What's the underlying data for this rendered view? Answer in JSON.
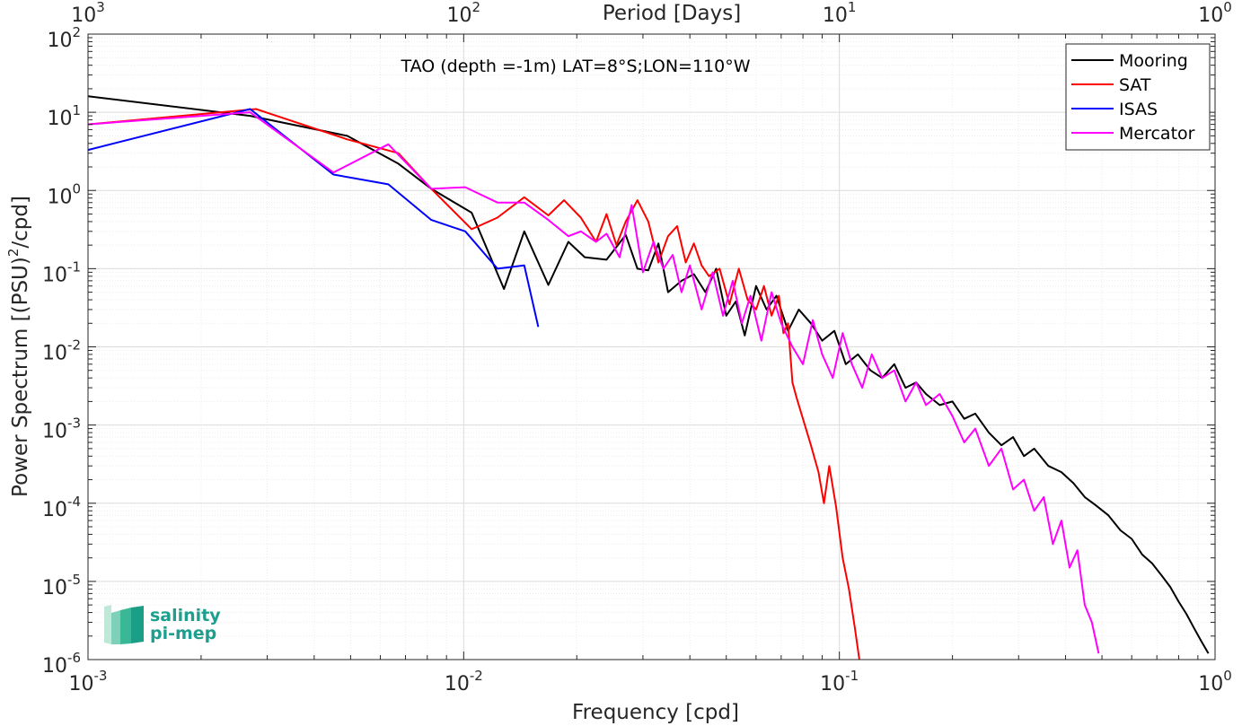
{
  "chart_data": {
    "type": "line",
    "title": "TAO (depth =-1m) LAT=8°S;LON=110°W",
    "xlabel": "Frequency [cpd]",
    "ylabel": "Power Spectrum [(PSU)²/cpd]",
    "ylabel_parts": {
      "pre": "Power Spectrum [(PSU)",
      "sup": "2",
      "post": "/cpd]"
    },
    "top_xlabel": "Period [Days]",
    "x_scale": "log",
    "y_scale": "log",
    "xlim": [
      0.001,
      1
    ],
    "ylim": [
      1e-06,
      100
    ],
    "grid": true,
    "minor_grid": true,
    "legend_position": "top-right",
    "x_ticks": [
      {
        "value": 0.001,
        "base": "10",
        "exp": "-3"
      },
      {
        "value": 0.01,
        "base": "10",
        "exp": "-2"
      },
      {
        "value": 0.1,
        "base": "10",
        "exp": "-1"
      },
      {
        "value": 1,
        "base": "10",
        "exp": "0"
      }
    ],
    "top_ticks": [
      {
        "value": 0.001,
        "base": "10",
        "exp": "3"
      },
      {
        "value": 0.01,
        "base": "10",
        "exp": "2"
      },
      {
        "value": 0.1,
        "base": "10",
        "exp": "1"
      },
      {
        "value": 1,
        "base": "10",
        "exp": "0"
      }
    ],
    "y_ticks": [
      {
        "value": 100,
        "base": "10",
        "exp": "2"
      },
      {
        "value": 10,
        "base": "10",
        "exp": "1"
      },
      {
        "value": 1,
        "base": "10",
        "exp": "0"
      },
      {
        "value": 0.1,
        "base": "10",
        "exp": "-1"
      },
      {
        "value": 0.01,
        "base": "10",
        "exp": "-2"
      },
      {
        "value": 0.001,
        "base": "10",
        "exp": "-3"
      },
      {
        "value": 0.0001,
        "base": "10",
        "exp": "-4"
      },
      {
        "value": 1e-05,
        "base": "10",
        "exp": "-5"
      },
      {
        "value": 1e-06,
        "base": "10",
        "exp": "-6"
      }
    ],
    "series": [
      {
        "name": "Mooring",
        "color": "#000000",
        "x": [
          0.001,
          0.0027,
          0.0049,
          0.0067,
          0.0082,
          0.0105,
          0.0128,
          0.0145,
          0.0168,
          0.019,
          0.021,
          0.024,
          0.027,
          0.029,
          0.031,
          0.033,
          0.035,
          0.038,
          0.041,
          0.044,
          0.047,
          0.05,
          0.053,
          0.056,
          0.06,
          0.064,
          0.068,
          0.073,
          0.078,
          0.084,
          0.09,
          0.097,
          0.104,
          0.112,
          0.121,
          0.13,
          0.14,
          0.15,
          0.16,
          0.17,
          0.185,
          0.2,
          0.215,
          0.23,
          0.25,
          0.27,
          0.29,
          0.31,
          0.33,
          0.36,
          0.39,
          0.42,
          0.45,
          0.48,
          0.52,
          0.56,
          0.6,
          0.64,
          0.68,
          0.72,
          0.76,
          0.8,
          0.84,
          0.88,
          0.92,
          0.96
        ],
        "y": [
          16,
          9,
          5,
          2.2,
          1.05,
          0.52,
          0.055,
          0.3,
          0.062,
          0.22,
          0.14,
          0.13,
          0.27,
          0.1,
          0.095,
          0.21,
          0.05,
          0.07,
          0.085,
          0.05,
          0.1,
          0.025,
          0.038,
          0.014,
          0.06,
          0.03,
          0.045,
          0.016,
          0.03,
          0.02,
          0.012,
          0.016,
          0.006,
          0.008,
          0.005,
          0.004,
          0.006,
          0.003,
          0.0035,
          0.0025,
          0.0018,
          0.002,
          0.0012,
          0.0014,
          0.0008,
          0.00055,
          0.0007,
          0.0004,
          0.0005,
          0.0003,
          0.00025,
          0.00018,
          0.00012,
          9.5e-05,
          7e-05,
          4.5e-05,
          3.5e-05,
          2.2e-05,
          1.7e-05,
          1.2e-05,
          8.5e-06,
          5.5e-06,
          3.8e-06,
          2.5e-06,
          1.7e-06,
          1.2e-06
        ]
      },
      {
        "name": "SAT",
        "color": "#ff0000",
        "x": [
          0.001,
          0.0028,
          0.0049,
          0.0067,
          0.0082,
          0.0105,
          0.0123,
          0.0145,
          0.0168,
          0.0185,
          0.0205,
          0.0225,
          0.024,
          0.0255,
          0.027,
          0.029,
          0.031,
          0.033,
          0.035,
          0.037,
          0.039,
          0.041,
          0.043,
          0.045,
          0.048,
          0.051,
          0.054,
          0.057,
          0.06,
          0.063,
          0.066,
          0.069,
          0.071,
          0.073,
          0.075,
          0.077,
          0.08,
          0.084,
          0.088,
          0.091,
          0.094,
          0.098,
          0.102,
          0.106,
          0.11,
          0.113
        ],
        "y": [
          7,
          11,
          4.5,
          3,
          1.05,
          0.32,
          0.45,
          0.82,
          0.48,
          0.75,
          0.45,
          0.22,
          0.5,
          0.2,
          0.4,
          0.75,
          0.4,
          0.12,
          0.26,
          0.35,
          0.12,
          0.21,
          0.11,
          0.08,
          0.1,
          0.035,
          0.1,
          0.04,
          0.03,
          0.06,
          0.025,
          0.045,
          0.015,
          0.02,
          0.0035,
          0.0022,
          0.0012,
          0.00055,
          0.00025,
          0.0001,
          0.0003,
          9e-05,
          2e-05,
          8e-06,
          2.5e-06,
          1e-06
        ]
      },
      {
        "name": "ISAS",
        "color": "#0000ff",
        "x": [
          0.001,
          0.0027,
          0.0045,
          0.0063,
          0.0082,
          0.0101,
          0.0123,
          0.0145,
          0.0158
        ],
        "y": [
          3.3,
          11,
          1.6,
          1.2,
          0.42,
          0.3,
          0.1,
          0.11,
          0.018
        ]
      },
      {
        "name": "Mercator",
        "color": "#ff00ff",
        "x": [
          0.001,
          0.0027,
          0.0045,
          0.0063,
          0.0082,
          0.0101,
          0.0123,
          0.0145,
          0.0168,
          0.019,
          0.0205,
          0.0225,
          0.024,
          0.026,
          0.028,
          0.03,
          0.032,
          0.034,
          0.036,
          0.038,
          0.04,
          0.043,
          0.046,
          0.049,
          0.052,
          0.055,
          0.058,
          0.062,
          0.066,
          0.07,
          0.075,
          0.08,
          0.085,
          0.09,
          0.096,
          0.102,
          0.108,
          0.115,
          0.122,
          0.13,
          0.14,
          0.15,
          0.16,
          0.17,
          0.185,
          0.2,
          0.215,
          0.23,
          0.25,
          0.27,
          0.29,
          0.31,
          0.33,
          0.35,
          0.37,
          0.39,
          0.41,
          0.43,
          0.45,
          0.47,
          0.49
        ],
        "y": [
          7,
          10,
          1.7,
          3.9,
          1.05,
          1.1,
          0.7,
          0.7,
          0.42,
          0.26,
          0.3,
          0.22,
          0.28,
          0.14,
          0.65,
          0.09,
          0.22,
          0.1,
          0.15,
          0.05,
          0.11,
          0.03,
          0.09,
          0.025,
          0.07,
          0.02,
          0.045,
          0.012,
          0.05,
          0.02,
          0.01,
          0.006,
          0.022,
          0.008,
          0.004,
          0.015,
          0.006,
          0.003,
          0.008,
          0.004,
          0.005,
          0.002,
          0.0035,
          0.0018,
          0.0025,
          0.0013,
          0.0006,
          0.0009,
          0.0003,
          0.0005,
          0.00015,
          0.0002,
          8e-05,
          0.00012,
          3e-05,
          6e-05,
          1.5e-05,
          2.5e-05,
          5e-06,
          3e-06,
          1.2e-06
        ]
      }
    ]
  },
  "logo": {
    "line1": "salinity",
    "line2": "pi-mep",
    "colors": [
      "#bfe8d9",
      "#7ed1b8",
      "#3ab895",
      "#1a9e86"
    ]
  }
}
